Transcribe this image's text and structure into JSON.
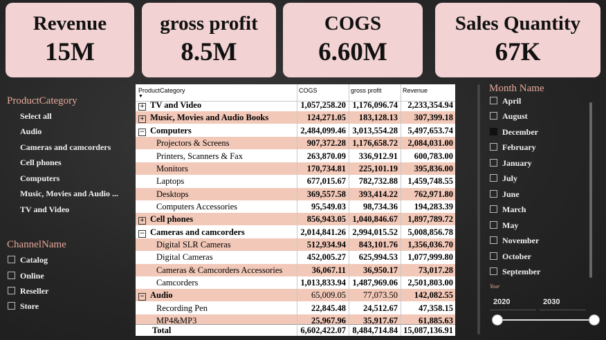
{
  "kpis": [
    {
      "title": "Revenue",
      "value": "15M"
    },
    {
      "title": "gross profit",
      "value": "8.5M"
    },
    {
      "title": "COGS",
      "value": "6.60M"
    },
    {
      "title": "Sales Quantity",
      "value": "67K"
    }
  ],
  "product_slicer": {
    "title": "ProductCategory",
    "options": [
      "Select all",
      "Audio",
      "Cameras and camcorders",
      "Cell phones",
      "Computers",
      "Music, Movies and Audio ...",
      "TV and Video"
    ]
  },
  "channel_slicer": {
    "title": "ChannelName",
    "options": [
      "Catalog",
      "Online",
      "Reseller",
      "Store"
    ]
  },
  "month_slicer": {
    "title": "Month Name",
    "options": [
      "April",
      "August",
      "December",
      "February",
      "January",
      "July",
      "June",
      "March",
      "May",
      "November",
      "October",
      "September"
    ]
  },
  "year_slicer": {
    "label": "Year",
    "from": "2020",
    "to": "2030"
  },
  "matrix": {
    "headers": [
      "ProductCategory",
      "COGS",
      "gross profit",
      "Revenue"
    ],
    "rows": [
      {
        "label": "TV and Video",
        "cogs": "1,057,258.20",
        "gp": "1,176,096.74",
        "rev": "2,233,354.94"
      },
      {
        "label": "Music, Movies and Audio Books",
        "cogs": "124,271.05",
        "gp": "183,128.13",
        "rev": "307,399.18"
      },
      {
        "label": "Computers",
        "cogs": "2,484,099.46",
        "gp": "3,013,554.28",
        "rev": "5,497,653.74"
      },
      {
        "label": "Projectors & Screens",
        "cogs": "907,372.28",
        "gp": "1,176,658.72",
        "rev": "2,084,031.00"
      },
      {
        "label": "Printers, Scanners & Fax",
        "cogs": "263,870.09",
        "gp": "336,912.91",
        "rev": "600,783.00"
      },
      {
        "label": "Monitors",
        "cogs": "170,734.81",
        "gp": "225,101.19",
        "rev": "395,836.00"
      },
      {
        "label": "Laptops",
        "cogs": "677,015.67",
        "gp": "782,732.88",
        "rev": "1,459,748.55"
      },
      {
        "label": "Desktops",
        "cogs": "369,557.58",
        "gp": "393,414.22",
        "rev": "762,971.80"
      },
      {
        "label": "Computers Accessories",
        "cogs": "95,549.03",
        "gp": "98,734.36",
        "rev": "194,283.39"
      },
      {
        "label": "Cell phones",
        "cogs": "856,943.05",
        "gp": "1,040,846.67",
        "rev": "1,897,789.72"
      },
      {
        "label": "Cameras and camcorders",
        "cogs": "2,014,841.26",
        "gp": "2,994,015.52",
        "rev": "5,008,856.78"
      },
      {
        "label": "Digital SLR Cameras",
        "cogs": "512,934.94",
        "gp": "843,101.76",
        "rev": "1,356,036.70"
      },
      {
        "label": "Digital Cameras",
        "cogs": "452,005.27",
        "gp": "625,994.53",
        "rev": "1,077,999.80"
      },
      {
        "label": "Cameras & Camcorders Accessories",
        "cogs": "36,067.11",
        "gp": "36,950.17",
        "rev": "73,017.28"
      },
      {
        "label": "Camcorders",
        "cogs": "1,013,833.94",
        "gp": "1,487,969.06",
        "rev": "2,501,803.00"
      },
      {
        "label": "Audio",
        "cogs": "65,009.05",
        "gp": "77,073.50",
        "rev": "142,082.55"
      },
      {
        "label": "Recording Pen",
        "cogs": "22,845.48",
        "gp": "24,512.67",
        "rev": "47,358.15"
      },
      {
        "label": "MP4&MP3",
        "cogs": "25,967.96",
        "gp": "35,917.67",
        "rev": "61,885.63"
      }
    ],
    "total": {
      "label": "Total",
      "cogs": "6,602,422.07",
      "gp": "8,484,714.84",
      "rev": "15,087,136.91"
    }
  },
  "colors": {
    "card_bg": "#f2d2d2",
    "row_highlight": "#f2c8b8",
    "slicer_title": "#e8a99a"
  }
}
